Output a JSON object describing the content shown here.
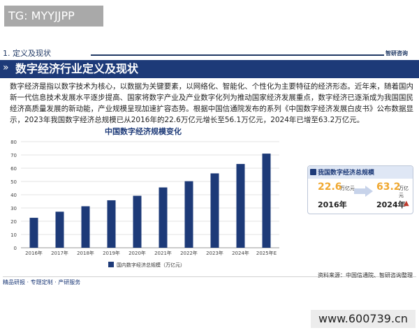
{
  "tg": "TG: MYYJJPP",
  "section": {
    "label": "1. 定义及现状",
    "logo": "智研咨询"
  },
  "title": "数字经济行业定义及现状",
  "paragraph": "数字经济是指以数字技术为核心，以数据为关键要素，以网络化、智能化、个性化为主要特征的经济形态。近年来，随着国内新一代信息技术发展水平逐步提高、国家将数字产业及产业数字化列为推动国家经济发展重点，数字经济已逐渐成为我国国民经济高质量发展的新动能，产业规模呈现加速扩容态势。根据中国信通院发布的系列《中国数字经济发展白皮书》公布数据显示，2023年我国数字经济总规模已从2016年的22.6万亿元增长至56.1万亿元，2024年已增至63.2万亿元。",
  "chart_data": {
    "type": "bar",
    "title": "中国数字经济规模变化",
    "categories": [
      "2016年",
      "2017年",
      "2018年",
      "2019年",
      "2020年",
      "2021年",
      "2022年",
      "2023年",
      "2024年",
      "2025年E"
    ],
    "series": [
      {
        "name": "国内数字经济总规模（万亿元）",
        "values": [
          22.6,
          27.2,
          31.3,
          35.8,
          39.2,
          45.5,
          50.2,
          56.1,
          63.2,
          71.0
        ]
      }
    ],
    "ylim": [
      0,
      80
    ],
    "yticks": [
      0,
      10,
      20,
      30,
      40,
      50,
      60,
      70,
      80
    ],
    "grid": true,
    "legend": "bottom-left",
    "bar_color": "#1d3a78"
  },
  "card": {
    "title": "我国数字经济总规模",
    "value_start": "22.6",
    "unit_start": "万亿元",
    "value_end": "63.2",
    "unit_end": "万亿元",
    "year_start": "2016年",
    "year_end": "2024年"
  },
  "footer": {
    "left": "精品研报 · 专题定制 · 产研服务",
    "source": "资料来源：中国信通院、智研咨询整理"
  },
  "url": "www.600739.cn"
}
